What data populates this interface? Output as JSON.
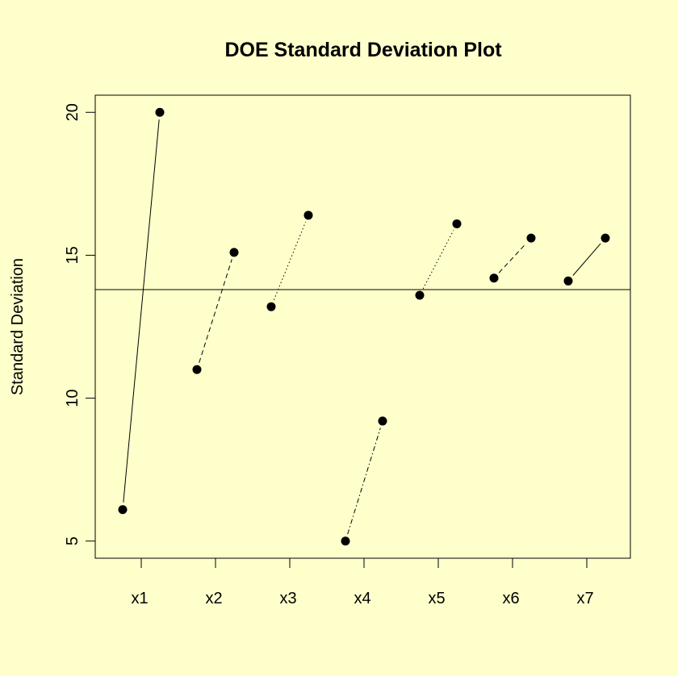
{
  "chart_data": {
    "type": "scatter",
    "title": "DOE Standard Deviation Plot",
    "xlabel": "",
    "ylabel": "Standard Deviation",
    "categories": [
      "x1",
      "x2",
      "x3",
      "x4",
      "x5",
      "x6",
      "x7"
    ],
    "yticks": [
      "5",
      "10",
      "15",
      "20"
    ],
    "ylim": [
      4.4,
      20.6
    ],
    "reference_line": 13.8,
    "series": [
      {
        "level": "low",
        "values": [
          6.1,
          11.0,
          13.2,
          5.0,
          13.6,
          14.2,
          14.1
        ]
      },
      {
        "level": "high",
        "values": [
          20.0,
          15.1,
          16.4,
          9.2,
          16.1,
          15.6,
          15.6
        ]
      }
    ],
    "line_styles": [
      "solid",
      "dash",
      "dot",
      "dash-dot",
      "dot",
      "dash",
      "solid"
    ],
    "colors": {
      "background": "#ffffcc",
      "ink": "#000000"
    },
    "grid": false
  }
}
